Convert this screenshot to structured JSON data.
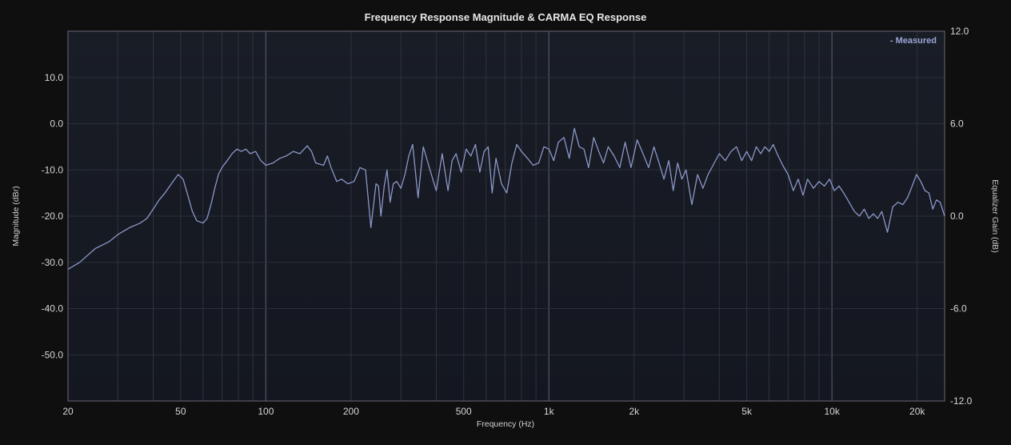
{
  "chart_data": {
    "type": "line",
    "title": "Frequency Response Magnitude & CARMA EQ Response",
    "xlabel": "Frequency (Hz)",
    "ylabel": "Magnitude (dBr)",
    "y2label": "Equalizer Gain (dB)",
    "x_scale": "log",
    "xlim": [
      20,
      25000
    ],
    "ylim": [
      -60,
      20
    ],
    "y2lim": [
      -12,
      12
    ],
    "x_ticks": [
      20,
      50,
      100,
      200,
      500,
      1000,
      2000,
      5000,
      10000,
      20000
    ],
    "x_tick_labels": [
      "20",
      "50",
      "100",
      "200",
      "500",
      "1k",
      "2k",
      "5k",
      "10k",
      "20k"
    ],
    "y_ticks": [
      10,
      0,
      -10,
      -20,
      -30,
      -40,
      -50
    ],
    "y_tick_labels": [
      "10.0",
      "0.0",
      "-10.0",
      "-20.0",
      "-30.0",
      "-40.0",
      "-50.0"
    ],
    "y2_ticks": [
      12,
      6,
      0,
      -6,
      -12
    ],
    "y2_tick_labels": [
      "12.0",
      "6.0",
      "0.0",
      "-6.0",
      "-12.0"
    ],
    "grid": true,
    "legend_position": "top-right",
    "series": [
      {
        "name": "Measured",
        "color": "#8b97c8",
        "x": [
          20,
          22,
          25,
          28,
          30,
          33,
          36,
          38,
          40,
          42,
          44,
          47,
          49,
          51,
          53,
          55,
          57,
          60,
          62,
          64,
          66,
          68,
          70,
          73,
          76,
          79,
          82,
          85,
          88,
          92,
          96,
          100,
          106,
          112,
          118,
          125,
          132,
          140,
          145,
          150,
          160,
          165,
          170,
          178,
          185,
          195,
          205,
          215,
          225,
          235,
          245,
          250,
          255,
          262,
          268,
          275,
          282,
          290,
          300,
          310,
          320,
          330,
          345,
          360,
          380,
          400,
          420,
          440,
          455,
          470,
          490,
          510,
          530,
          550,
          570,
          590,
          610,
          630,
          650,
          680,
          710,
          740,
          770,
          800,
          840,
          880,
          920,
          960,
          1000,
          1040,
          1080,
          1130,
          1180,
          1230,
          1280,
          1330,
          1380,
          1440,
          1500,
          1560,
          1620,
          1700,
          1780,
          1860,
          1950,
          2050,
          2150,
          2250,
          2350,
          2450,
          2550,
          2650,
          2750,
          2850,
          2950,
          3050,
          3200,
          3350,
          3500,
          3650,
          3800,
          4000,
          4200,
          4400,
          4600,
          4800,
          5000,
          5200,
          5400,
          5600,
          5800,
          6000,
          6200,
          6400,
          6700,
          7000,
          7300,
          7600,
          7900,
          8200,
          8600,
          9000,
          9400,
          9800,
          10200,
          10600,
          11000,
          11500,
          12000,
          12500,
          13000,
          13500,
          14000,
          14500,
          15000,
          15700,
          16400,
          17100,
          17800,
          18500,
          19200,
          19900,
          20600,
          21300,
          22000,
          22700,
          23400,
          24100,
          25000
        ],
        "y": [
          -31.5,
          -30,
          -27,
          -25.5,
          -24,
          -22.5,
          -21.5,
          -20.5,
          -18.5,
          -16.5,
          -15,
          -12.5,
          -11,
          -12,
          -15.5,
          -19,
          -21,
          -21.5,
          -20.5,
          -17.5,
          -14,
          -11,
          -9.5,
          -8,
          -6.5,
          -5.5,
          -6,
          -5.5,
          -6.5,
          -6,
          -8,
          -9,
          -8.5,
          -7.5,
          -7,
          -6,
          -6.5,
          -4.8,
          -6,
          -8.5,
          -9,
          -7,
          -9.5,
          -12.5,
          -12,
          -13,
          -12.5,
          -9.5,
          -10,
          -22.5,
          -13,
          -13.5,
          -20,
          -13.5,
          -10,
          -17,
          -13,
          -12.5,
          -14,
          -11,
          -7,
          -4.5,
          -16,
          -5,
          -10,
          -14.5,
          -6.5,
          -14.5,
          -8,
          -6.5,
          -10.5,
          -5.5,
          -7,
          -4.5,
          -10.5,
          -6,
          -5,
          -15,
          -7.5,
          -13,
          -15,
          -8.5,
          -4.5,
          -6,
          -7.5,
          -9,
          -8.5,
          -5,
          -5.5,
          -8,
          -4,
          -3,
          -7.5,
          -1,
          -5,
          -5.5,
          -9.5,
          -3,
          -6,
          -8.5,
          -5,
          -7,
          -9.5,
          -4,
          -9.5,
          -3.5,
          -6.5,
          -9.5,
          -5,
          -8.5,
          -12,
          -8,
          -14.5,
          -8.5,
          -12,
          -10,
          -17.5,
          -11,
          -14,
          -11,
          -9,
          -6.5,
          -8,
          -6,
          -5,
          -8,
          -6,
          -8,
          -5,
          -6.5,
          -5,
          -6,
          -4.5,
          -6.5,
          -9,
          -11,
          -14.5,
          -12,
          -15.5,
          -12,
          -14,
          -12.5,
          -13.5,
          -12,
          -14.5,
          -13.5,
          -15,
          -17,
          -19,
          -20,
          -18.5,
          -20.5,
          -19.5,
          -20.5,
          -19,
          -23.5,
          -18,
          -17,
          -17.5,
          -16,
          -13.5,
          -11,
          -12.5,
          -14.5,
          -15,
          -18.5,
          -16.5,
          -17,
          -20
        ]
      }
    ]
  }
}
